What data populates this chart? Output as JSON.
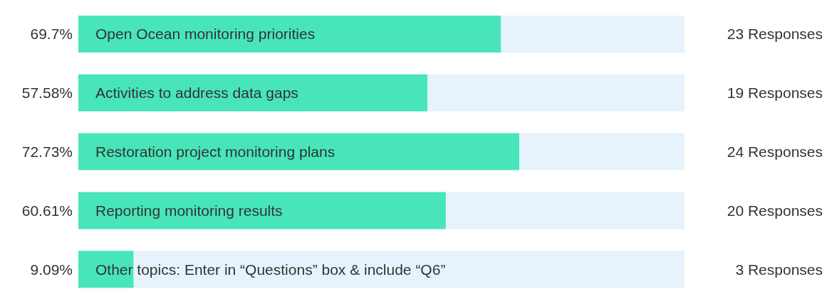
{
  "chart_data": {
    "type": "bar",
    "orientation": "horizontal",
    "categories": [
      "Open Ocean monitoring priorities",
      "Activities to address data gaps",
      "Restoration project monitoring plans",
      "Reporting monitoring results",
      "Other topics: Enter in “Questions” box & include “Q6”"
    ],
    "values": [
      69.7,
      57.58,
      72.73,
      60.61,
      9.09
    ],
    "value_labels": [
      "69.7%",
      "57.58%",
      "72.73%",
      "60.61%",
      "9.09%"
    ],
    "color": "#48e5b9",
    "xlim": [
      0,
      100
    ],
    "annotations": [
      "23 Responses",
      "19 Responses",
      "24 Responses",
      "20 Responses",
      "3 Responses"
    ]
  }
}
